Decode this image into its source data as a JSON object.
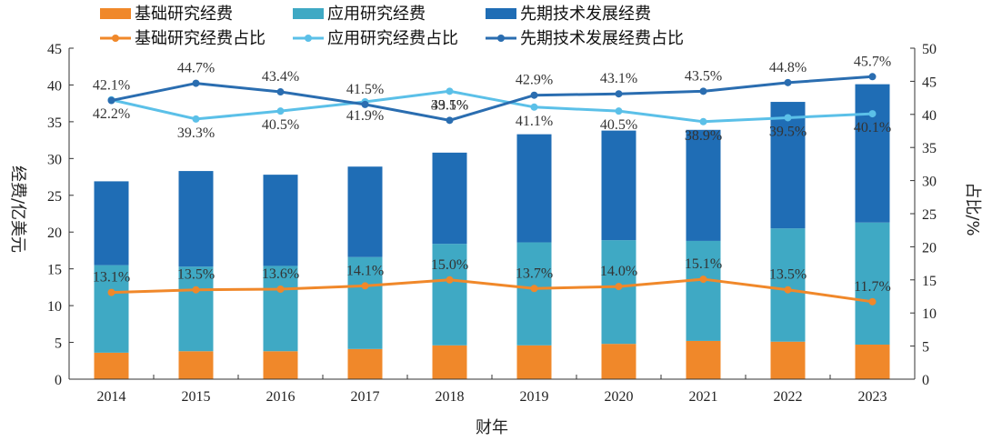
{
  "chart_data": {
    "type": "bar",
    "xlabel": "财年",
    "ylabel": "经费/亿美元",
    "y2label": "占比/%",
    "ylim": [
      0,
      45
    ],
    "yticks": [
      0,
      5,
      10,
      15,
      20,
      25,
      30,
      35,
      40,
      45
    ],
    "y2lim": [
      0,
      50
    ],
    "y2ticks": [
      0,
      5,
      10,
      15,
      20,
      25,
      30,
      35,
      40,
      45,
      50
    ],
    "categories": [
      "2014",
      "2015",
      "2016",
      "2017",
      "2018",
      "2019",
      "2020",
      "2021",
      "2022",
      "2023"
    ],
    "series": [
      {
        "name": "基础研究经费",
        "kind": "bar",
        "color": "#f0882a",
        "values": [
          3.6,
          3.8,
          3.8,
          4.1,
          4.6,
          4.6,
          4.8,
          5.2,
          5.1,
          4.7
        ]
      },
      {
        "name": "应用研究经费",
        "kind": "bar",
        "color": "#3fa9c4",
        "values": [
          11.9,
          11.5,
          11.6,
          12.5,
          13.8,
          14.0,
          14.1,
          13.6,
          15.4,
          16.6
        ]
      },
      {
        "name": "先期技术发展经费",
        "kind": "bar",
        "color": "#1f6db5",
        "values": [
          11.4,
          13.0,
          12.4,
          12.3,
          12.4,
          14.7,
          14.9,
          15.1,
          17.2,
          18.8
        ]
      },
      {
        "name": "基础研究经费占比",
        "kind": "line",
        "color": "#f0882a",
        "values": [
          13.1,
          13.5,
          13.6,
          14.1,
          15.0,
          13.7,
          14.0,
          15.1,
          13.5,
          11.7
        ],
        "labels": [
          "13.1%",
          "13.5%",
          "13.6%",
          "14.1%",
          "15.0%",
          "13.7%",
          "14.0%",
          "15.1%",
          "13.5%",
          "11.7%"
        ]
      },
      {
        "name": "应用研究经费占比",
        "kind": "line",
        "color": "#5bc0e8",
        "values": [
          42.2,
          39.3,
          40.5,
          41.9,
          43.5,
          41.1,
          40.5,
          38.9,
          39.5,
          40.1
        ],
        "labels": [
          "42.2%",
          "39.3%",
          "40.5%",
          "41.9%",
          "43.5%",
          "41.1%",
          "40.5%",
          "38.9%",
          "39.5%",
          "40.1%"
        ]
      },
      {
        "name": "先期技术发展经费占比",
        "kind": "line",
        "color": "#2a6db0",
        "values": [
          42.1,
          44.7,
          43.4,
          41.5,
          39.1,
          42.9,
          43.1,
          43.5,
          44.8,
          45.7
        ],
        "labels": [
          "42.1%",
          "44.7%",
          "43.4%",
          "41.5%",
          "39.1%",
          "42.9%",
          "43.1%",
          "43.5%",
          "44.8%",
          "45.7%"
        ]
      }
    ],
    "legend": "top"
  }
}
